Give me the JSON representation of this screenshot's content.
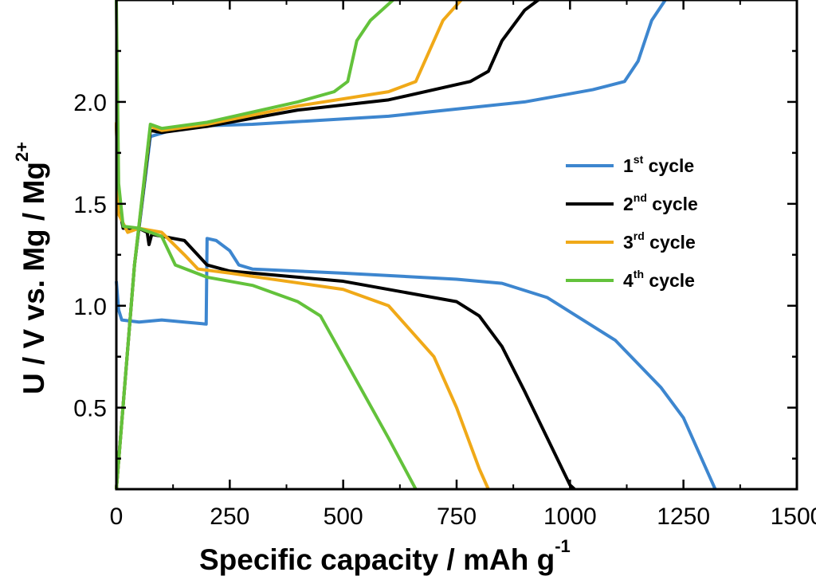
{
  "chart_data": {
    "type": "line",
    "xlabel": "Specific capacity / mAh g",
    "xlabel_sup": "-1",
    "ylabel": "U / V vs. Mg / Mg",
    "ylabel_sup": "2+",
    "xlim": [
      0,
      1500
    ],
    "ylim": [
      0.1,
      2.5
    ],
    "xticks": [
      "0",
      "250",
      "500",
      "750",
      "1000",
      "1250",
      "1500"
    ],
    "yticks": [
      "0.5",
      "1.0",
      "1.5",
      "2.0"
    ],
    "grid": false,
    "legend_position": "right",
    "series": [
      {
        "name": "1",
        "sup": "st",
        "suffix": " cycle",
        "color": "#3d86cf",
        "discharge": [
          [
            0,
            1.12
          ],
          [
            5,
            0.98
          ],
          [
            12,
            0.93
          ],
          [
            50,
            0.92
          ],
          [
            100,
            0.93
          ],
          [
            150,
            0.92
          ],
          [
            198,
            0.91
          ],
          [
            200,
            1.33
          ],
          [
            220,
            1.32
          ],
          [
            250,
            1.27
          ],
          [
            270,
            1.2
          ],
          [
            300,
            1.18
          ],
          [
            500,
            1.16
          ],
          [
            750,
            1.13
          ],
          [
            850,
            1.11
          ],
          [
            950,
            1.04
          ],
          [
            1000,
            0.97
          ],
          [
            1100,
            0.83
          ],
          [
            1200,
            0.6
          ],
          [
            1250,
            0.45
          ],
          [
            1300,
            0.2
          ],
          [
            1320,
            0.1
          ]
        ],
        "charge": [
          [
            0,
            0.1
          ],
          [
            40,
            1.2
          ],
          [
            75,
            1.83
          ],
          [
            150,
            1.88
          ],
          [
            300,
            1.89
          ],
          [
            600,
            1.93
          ],
          [
            900,
            2.0
          ],
          [
            1050,
            2.06
          ],
          [
            1120,
            2.1
          ],
          [
            1150,
            2.2
          ],
          [
            1180,
            2.4
          ],
          [
            1210,
            2.5
          ]
        ]
      },
      {
        "name": "2",
        "sup": "nd",
        "suffix": " cycle",
        "color": "#000000",
        "discharge": [
          [
            0,
            1.9
          ],
          [
            5,
            1.5
          ],
          [
            15,
            1.38
          ],
          [
            50,
            1.38
          ],
          [
            68,
            1.36
          ],
          [
            72,
            1.3
          ],
          [
            78,
            1.35
          ],
          [
            150,
            1.32
          ],
          [
            200,
            1.2
          ],
          [
            250,
            1.17
          ],
          [
            500,
            1.12
          ],
          [
            750,
            1.02
          ],
          [
            800,
            0.95
          ],
          [
            850,
            0.8
          ],
          [
            900,
            0.58
          ],
          [
            950,
            0.35
          ],
          [
            1000,
            0.12
          ],
          [
            1010,
            0.1
          ]
        ],
        "charge": [
          [
            0,
            0.1
          ],
          [
            40,
            1.2
          ],
          [
            75,
            1.86
          ],
          [
            100,
            1.85
          ],
          [
            200,
            1.88
          ],
          [
            400,
            1.96
          ],
          [
            600,
            2.01
          ],
          [
            780,
            2.1
          ],
          [
            820,
            2.15
          ],
          [
            850,
            2.3
          ],
          [
            900,
            2.45
          ],
          [
            930,
            2.5
          ]
        ]
      },
      {
        "name": "3",
        "sup": "rd",
        "suffix": " cycle",
        "color": "#f0a918",
        "discharge": [
          [
            0,
            1.9
          ],
          [
            5,
            1.45
          ],
          [
            25,
            1.36
          ],
          [
            50,
            1.38
          ],
          [
            100,
            1.36
          ],
          [
            150,
            1.25
          ],
          [
            180,
            1.18
          ],
          [
            250,
            1.16
          ],
          [
            500,
            1.08
          ],
          [
            600,
            1.0
          ],
          [
            700,
            0.75
          ],
          [
            750,
            0.5
          ],
          [
            800,
            0.2
          ],
          [
            820,
            0.1
          ]
        ],
        "charge": [
          [
            0,
            0.1
          ],
          [
            40,
            1.2
          ],
          [
            75,
            1.88
          ],
          [
            100,
            1.86
          ],
          [
            200,
            1.89
          ],
          [
            400,
            1.98
          ],
          [
            600,
            2.05
          ],
          [
            660,
            2.1
          ],
          [
            690,
            2.25
          ],
          [
            720,
            2.4
          ],
          [
            760,
            2.5
          ]
        ]
      },
      {
        "name": "4",
        "sup": "th",
        "suffix": " cycle",
        "color": "#63c23b",
        "discharge": [
          [
            0,
            2.5
          ],
          [
            5,
            1.6
          ],
          [
            15,
            1.39
          ],
          [
            50,
            1.38
          ],
          [
            100,
            1.34
          ],
          [
            130,
            1.2
          ],
          [
            200,
            1.14
          ],
          [
            300,
            1.1
          ],
          [
            400,
            1.02
          ],
          [
            450,
            0.95
          ],
          [
            500,
            0.75
          ],
          [
            600,
            0.35
          ],
          [
            660,
            0.1
          ]
        ],
        "charge": [
          [
            0,
            0.1
          ],
          [
            40,
            1.2
          ],
          [
            75,
            1.89
          ],
          [
            100,
            1.87
          ],
          [
            200,
            1.9
          ],
          [
            400,
            2.0
          ],
          [
            480,
            2.05
          ],
          [
            510,
            2.1
          ],
          [
            530,
            2.3
          ],
          [
            560,
            2.4
          ],
          [
            610,
            2.5
          ]
        ]
      }
    ]
  }
}
